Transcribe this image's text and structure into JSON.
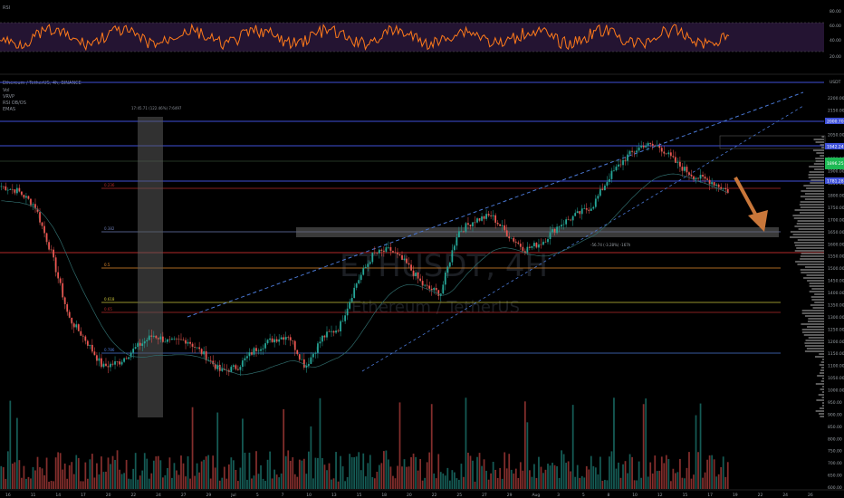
{
  "colors": {
    "bg": "#000000",
    "up": "#26a69a",
    "down": "#ef5350",
    "rsi": "#ff7a1a",
    "rsiBand": "#2a1a3a",
    "blue": "#3f51d9",
    "dash": "#4a78d4",
    "red": "#b32a2a",
    "orange": "#e38a2e",
    "yellow": "#c9c33a",
    "gray": "#5a5a5a",
    "arrow": "#c9773a"
  },
  "rsi_panel": {
    "label": "RSI",
    "levels": [
      "80.00",
      "60.00",
      "40.00",
      "20.00"
    ]
  },
  "main_panel": {
    "symbol": "Ethereum / TetherUS, 4h, BINANCE",
    "indicators": [
      "Vol",
      "VRVP",
      "RSI OB/OS",
      "EMAS"
    ],
    "watermark_ticker": "ETHUSDT, 4H",
    "watermark_name": "Ethereum / TetherUS",
    "range_label": "17:45.71 (122.46%) 7:6497",
    "range_label2": "-56.74 (-3.28%) -167h",
    "currency": "USDT"
  },
  "fib_levels": [
    {
      "label": "0.236",
      "color": "#b32a2a"
    },
    {
      "label": "0.382",
      "color": "#6a7ab0"
    },
    {
      "label": "0.5",
      "color": "#e38a2e"
    },
    {
      "label": "0.618",
      "color": "#c9c33a"
    },
    {
      "label": "0.65",
      "color": "#b32a2a"
    },
    {
      "label": "0.786",
      "color": "#4a78d4"
    }
  ],
  "price_axis": [
    "2200.00",
    "2150.00",
    "2100.00",
    "2050.00",
    "2000.00",
    "1950.00",
    "1900.00",
    "1850.00",
    "1800.00",
    "1750.00",
    "1700.00",
    "1650.00",
    "1600.00",
    "1550.00",
    "1500.00",
    "1450.00",
    "1400.00",
    "1350.00",
    "1300.00",
    "1250.00",
    "1200.00",
    "1150.00",
    "1100.00",
    "1050.00",
    "1000.00",
    "950.00",
    "900.00",
    "850.00",
    "800.00",
    "750.00",
    "700.00",
    "650.00",
    "600.00"
  ],
  "price_tags": [
    {
      "label": "2000.70",
      "color": "#3f51d9"
    },
    {
      "label": "1942.24",
      "color": "#3f51d9"
    },
    {
      "label": "1896.25",
      "color": "#1db954"
    },
    {
      "label": "1838.50",
      "color": "#1db954"
    },
    {
      "label": "1781.28",
      "color": "#3f51d9"
    }
  ],
  "time_axis": [
    "16",
    "11",
    "14",
    "17",
    "20",
    "22",
    "24",
    "27",
    "29",
    "Jul",
    "5",
    "7",
    "10",
    "13",
    "15",
    "18",
    "20",
    "22",
    "25",
    "27",
    "29",
    "Aug",
    "3",
    "5",
    "8",
    "10",
    "12",
    "15",
    "17",
    "19",
    "22",
    "24",
    "26"
  ],
  "chart_data": {
    "type": "line",
    "series": [
      {
        "name": "Ethereum / TetherUS",
        "values": [
          1840,
          1820,
          1760,
          1560,
          1300,
          1210,
          1100,
          1120,
          1180,
          1230,
          1200,
          1210,
          1150,
          1080,
          1100,
          1170,
          1210,
          1230,
          1100,
          1220,
          1260,
          1440,
          1560,
          1580,
          1520,
          1430,
          1400,
          1650,
          1700,
          1720,
          1640,
          1580,
          1610,
          1680,
          1720,
          1760,
          1880,
          1960,
          2010,
          2000,
          1930,
          1880,
          1860,
          1820
        ]
      }
    ],
    "ylim": [
      600,
      2250
    ]
  }
}
